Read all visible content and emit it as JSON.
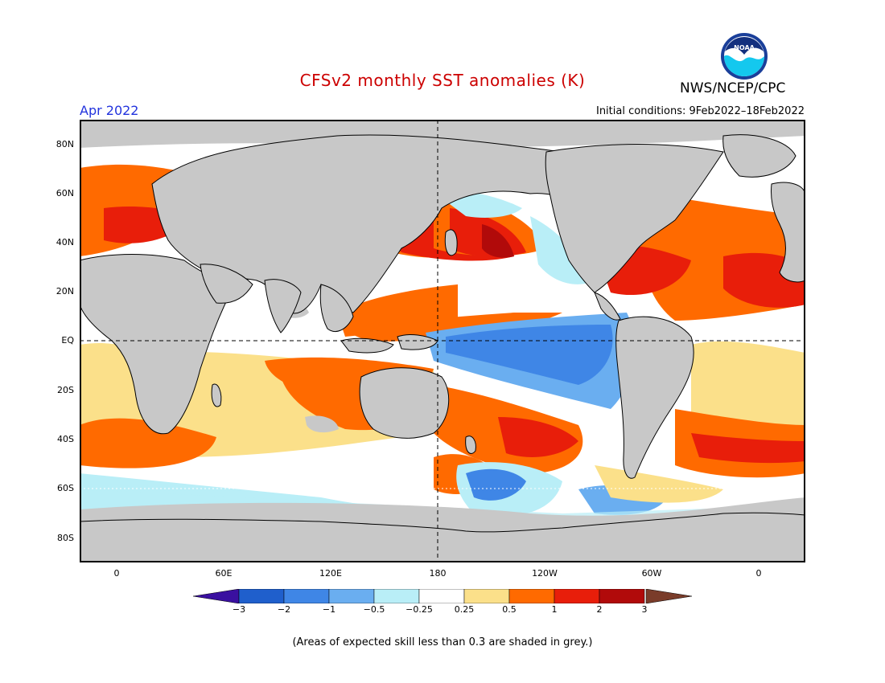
{
  "title": "CFSv2 monthly SST anomalies (K)",
  "agency": "NWS/NCEP/CPC",
  "logo_text": "NOAA",
  "month": "Apr 2022",
  "initial_conditions": "Initial conditions: 9Feb2022–18Feb2022",
  "lat_labels": [
    "80N",
    "60N",
    "40N",
    "20N",
    "EQ",
    "20S",
    "40S",
    "60S",
    "80S"
  ],
  "lon_labels": [
    "0",
    "60E",
    "120E",
    "180",
    "120W",
    "60W",
    "0"
  ],
  "colorbar": {
    "labels": [
      "−3",
      "−2",
      "−1",
      "−0.5",
      "−0.25",
      "0.25",
      "0.5",
      "1",
      "2",
      "3"
    ],
    "colors": [
      "#3a10a0",
      "#1f5fcc",
      "#3f86e6",
      "#6aaef0",
      "#b9eef7",
      "#ffffff",
      "#fbe08a",
      "#ff6a00",
      "#e81e0a",
      "#b10a0a",
      "#7a3c2a"
    ]
  },
  "footnote": "(Areas of expected skill less than 0.3 are shaded in grey.)",
  "colors": {
    "land": "#c8c8c8",
    "title": "#cc0000",
    "month": "#2233dd"
  }
}
